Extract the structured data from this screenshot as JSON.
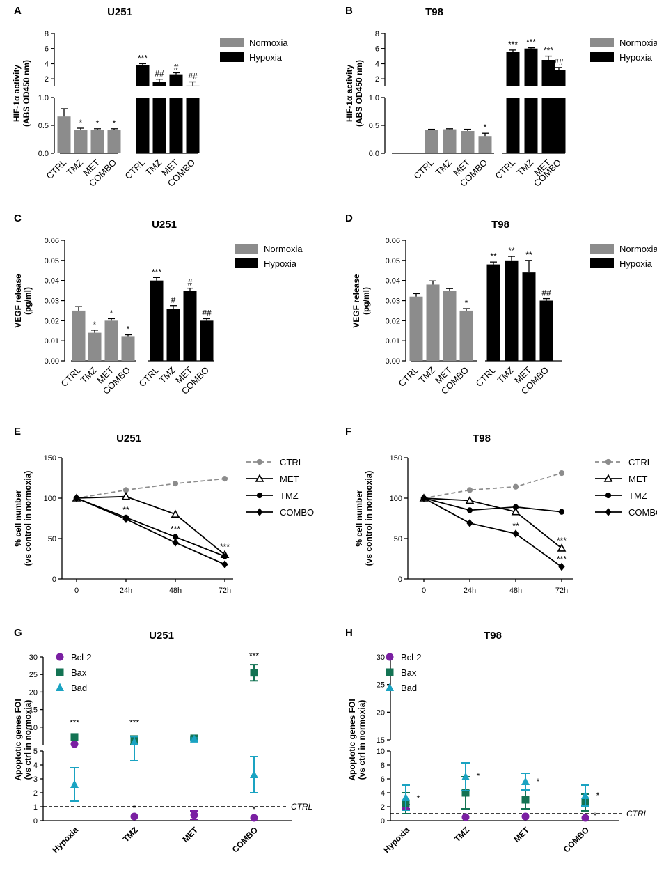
{
  "chart_data": [
    {
      "panel": "A",
      "title": "U251",
      "type": "bar",
      "ylabel": [
        "HIF-1α activity",
        "(ABS OD450 nm)"
      ],
      "categories": [
        "CTRL",
        "TMZ",
        "MET",
        "COMBO",
        "CTRL",
        "TMZ",
        "MET",
        "COMBO"
      ],
      "groups": [
        "Normoxia",
        "Normoxia",
        "Normoxia",
        "Normoxia",
        "Hypoxia",
        "Hypoxia",
        "Hypoxia",
        "Hypoxia"
      ],
      "legend": [
        "Normoxia",
        "Hypoxia"
      ],
      "values": [
        0.66,
        0.42,
        0.42,
        0.42,
        3.8,
        1.6,
        2.6,
        1.1
      ],
      "errors": [
        0.14,
        0.03,
        0.02,
        0.02,
        0.2,
        0.35,
        0.2,
        0.5
      ],
      "annotations": [
        "",
        "*",
        "*",
        "*",
        "***",
        "##",
        "#",
        "##"
      ],
      "y_low_ticks": [
        "0.0",
        "0.5",
        "1.0"
      ],
      "y_high_ticks": [
        "2",
        "4",
        "6",
        "8"
      ],
      "ylim_low": [
        0,
        1
      ],
      "ylim_high": [
        1,
        8
      ]
    },
    {
      "panel": "B",
      "title": "T98",
      "type": "bar",
      "ylabel": [
        "HIF-1α activity",
        "(ABS OD450 nm)"
      ],
      "categories": [
        "CTRL",
        "TMZ",
        "MET",
        "COMBO",
        "CTRL",
        "TMZ",
        "MET",
        "COMBO"
      ],
      "groups": [
        "Normoxia",
        "Normoxia",
        "Normoxia",
        "Normoxia",
        "Hypoxia",
        "Hypoxia",
        "Hypoxia",
        "Hypoxia"
      ],
      "legend": [
        "Normoxia",
        "Hypoxia"
      ],
      "values": [
        0.42,
        0.43,
        0.4,
        0.31,
        5.6,
        6.0,
        4.5,
        3.2
      ],
      "errors": [
        0.01,
        0.01,
        0.03,
        0.05,
        0.2,
        0.1,
        0.5,
        0.3
      ],
      "annotations": [
        "",
        "",
        "",
        "*",
        "***",
        "***",
        "***",
        "##"
      ],
      "y_low_ticks": [
        "0.0",
        "0.5",
        "1.0"
      ],
      "y_high_ticks": [
        "2",
        "4",
        "6",
        "8"
      ],
      "ylim_low": [
        0,
        1
      ],
      "ylim_high": [
        1,
        8
      ]
    },
    {
      "panel": "C",
      "title": "U251",
      "type": "bar",
      "ylabel": [
        "VEGF release",
        "(pg/ml)"
      ],
      "categories": [
        "CTRL",
        "TMZ",
        "MET",
        "COMBO",
        "CTRL",
        "TMZ",
        "MET",
        "COMBO"
      ],
      "groups": [
        "Normoxia",
        "Normoxia",
        "Normoxia",
        "Normoxia",
        "Hypoxia",
        "Hypoxia",
        "Hypoxia",
        "Hypoxia"
      ],
      "legend": [
        "Normoxia",
        "Hypoxia"
      ],
      "values": [
        0.025,
        0.014,
        0.02,
        0.012,
        0.04,
        0.026,
        0.035,
        0.02
      ],
      "errors": [
        0.002,
        0.0013,
        0.001,
        0.001,
        0.0015,
        0.0015,
        0.0012,
        0.001
      ],
      "annotations": [
        "",
        "*",
        "*",
        "*",
        "***",
        "#",
        "#",
        "##"
      ],
      "yticks": [
        "0.00",
        "0.01",
        "0.02",
        "0.03",
        "0.04",
        "0.05",
        "0.06"
      ],
      "ylim": [
        0,
        0.06
      ]
    },
    {
      "panel": "D",
      "title": "T98",
      "type": "bar",
      "ylabel": [
        "VEGF release",
        "(pg/ml)"
      ],
      "categories": [
        "CTRL",
        "TMZ",
        "MET",
        "COMBO",
        "CTRL",
        "TMZ",
        "MET",
        "COMBO"
      ],
      "groups": [
        "Normoxia",
        "Normoxia",
        "Normoxia",
        "Normoxia",
        "Hypoxia",
        "Hypoxia",
        "Hypoxia",
        "Hypoxia"
      ],
      "legend": [
        "Normoxia",
        "Hypoxia"
      ],
      "values": [
        0.032,
        0.038,
        0.035,
        0.025,
        0.048,
        0.05,
        0.044,
        0.03
      ],
      "errors": [
        0.0015,
        0.0018,
        0.001,
        0.001,
        0.0012,
        0.002,
        0.006,
        0.001
      ],
      "annotations": [
        "",
        "",
        "",
        "*",
        "**",
        "**",
        "**",
        "##"
      ],
      "yticks": [
        "0.00",
        "0.01",
        "0.02",
        "0.03",
        "0.04",
        "0.05",
        "0.06"
      ],
      "ylim": [
        0,
        0.06
      ]
    },
    {
      "panel": "E",
      "title": "U251",
      "type": "line",
      "ylabel": [
        "% cell number",
        "(vs control in normoxia)"
      ],
      "x": [
        "0",
        "24h",
        "48h",
        "72h"
      ],
      "yticks": [
        "0",
        "50",
        "100",
        "150"
      ],
      "ylim": [
        0,
        150
      ],
      "series": [
        {
          "name": "CTRL",
          "values": [
            100,
            110,
            118,
            124
          ]
        },
        {
          "name": "MET",
          "values": [
            100,
            102,
            80,
            30
          ]
        },
        {
          "name": "TMZ",
          "values": [
            100,
            76,
            52,
            28
          ]
        },
        {
          "name": "COMBO",
          "values": [
            100,
            74,
            45,
            18
          ]
        }
      ],
      "annotations": [
        {
          "x": "24h",
          "y": 76,
          "text": "**"
        },
        {
          "x": "48h",
          "y": 52,
          "text": "***"
        },
        {
          "x": "72h",
          "y": 30,
          "text": "***"
        }
      ]
    },
    {
      "panel": "F",
      "title": "T98",
      "type": "line",
      "ylabel": [
        "% cell number",
        "(vs control in normoxia)"
      ],
      "x": [
        "0",
        "24h",
        "48h",
        "72h"
      ],
      "yticks": [
        "0",
        "50",
        "100",
        "150"
      ],
      "ylim": [
        0,
        150
      ],
      "series": [
        {
          "name": "CTRL",
          "values": [
            100,
            110,
            114,
            131
          ]
        },
        {
          "name": "MET",
          "values": [
            100,
            97,
            83,
            38
          ]
        },
        {
          "name": "TMZ",
          "values": [
            100,
            85,
            89,
            83
          ]
        },
        {
          "name": "COMBO",
          "values": [
            100,
            69,
            56,
            15
          ]
        }
      ],
      "annotations": [
        {
          "x": "48h",
          "y": 56,
          "text": "**"
        },
        {
          "x": "72h",
          "y": 38,
          "text": "***"
        },
        {
          "x": "72h",
          "y": 15,
          "text": "***"
        }
      ]
    },
    {
      "panel": "G",
      "title": "U251",
      "type": "scatter",
      "ylabel": [
        "Apoptotic genes FOI",
        "(vs ctrl in normoxia)"
      ],
      "categories": [
        "Hypoxia",
        "TMZ",
        "MET",
        "COMBO"
      ],
      "y_low_ticks": [
        "0",
        "1",
        "2",
        "3",
        "4",
        "5"
      ],
      "y_high_ticks": [
        "10",
        "15",
        "20",
        "25",
        "30"
      ],
      "ylim_low": [
        0,
        5
      ],
      "ylim_high": [
        5,
        30
      ],
      "reference_line": {
        "y": 1,
        "label": "CTRL"
      },
      "series": [
        {
          "name": "Bcl-2",
          "values": [
            5.2,
            0.3,
            0.4,
            0.2
          ],
          "errors": [
            0,
            0,
            0.3,
            0
          ]
        },
        {
          "name": "Bax",
          "values": [
            7.2,
            6.3,
            6.8,
            25.5
          ],
          "errors": [
            0,
            1.2,
            0.3,
            2.3
          ]
        },
        {
          "name": "Bad",
          "values": [
            2.6,
            5.8,
            6.6,
            3.3
          ],
          "errors": [
            1.2,
            1.5,
            0.3,
            1.3
          ]
        }
      ],
      "annotations": [
        {
          "category": "Hypoxia",
          "y": 10.5,
          "text": "***"
        },
        {
          "category": "TMZ",
          "y": 10.5,
          "text": "***"
        },
        {
          "category": "COMBO",
          "y": 29.5,
          "text": "***"
        },
        {
          "category": "TMZ",
          "y": 0.7,
          "text": "*"
        },
        {
          "category": "COMBO",
          "y": 0.6,
          "text": "*"
        }
      ]
    },
    {
      "panel": "H",
      "title": "T98",
      "type": "scatter",
      "ylabel": [
        "Apoptotic genes FOI",
        "(vs ctrl in normoxia)"
      ],
      "categories": [
        "Hypoxia",
        "TMZ",
        "MET",
        "COMBO"
      ],
      "y_low_ticks": [
        "0",
        "2",
        "4",
        "6",
        "8",
        "10"
      ],
      "y_high_ticks": [
        "20",
        "25",
        "30"
      ],
      "ylim_low": [
        0,
        10
      ],
      "ylim_high": [
        15,
        30
      ],
      "reference_line": {
        "y": 1,
        "label": "CTRL"
      },
      "series": [
        {
          "name": "Bcl-2",
          "values": [
            2.0,
            0.5,
            0.6,
            0.4
          ],
          "errors": [
            0.3,
            0,
            0,
            0
          ]
        },
        {
          "name": "Bax",
          "values": [
            2.5,
            4.0,
            3.0,
            2.6
          ],
          "errors": [
            1.5,
            2.3,
            1.3,
            1.2
          ]
        },
        {
          "name": "Bad",
          "values": [
            3.3,
            6.3,
            5.6,
            3.6
          ],
          "errors": [
            1.8,
            2.0,
            1.2,
            1.5
          ]
        }
      ],
      "annotations": [
        {
          "category": "Hypoxia",
          "y": 2.8,
          "text": "*"
        },
        {
          "category": "TMZ",
          "y": 6.0,
          "text": "*"
        },
        {
          "category": "MET",
          "y": 5.2,
          "text": "*"
        },
        {
          "category": "COMBO",
          "y": 3.2,
          "text": "*"
        },
        {
          "category": "COMBO",
          "y": 0.3,
          "text": "*"
        }
      ]
    }
  ]
}
